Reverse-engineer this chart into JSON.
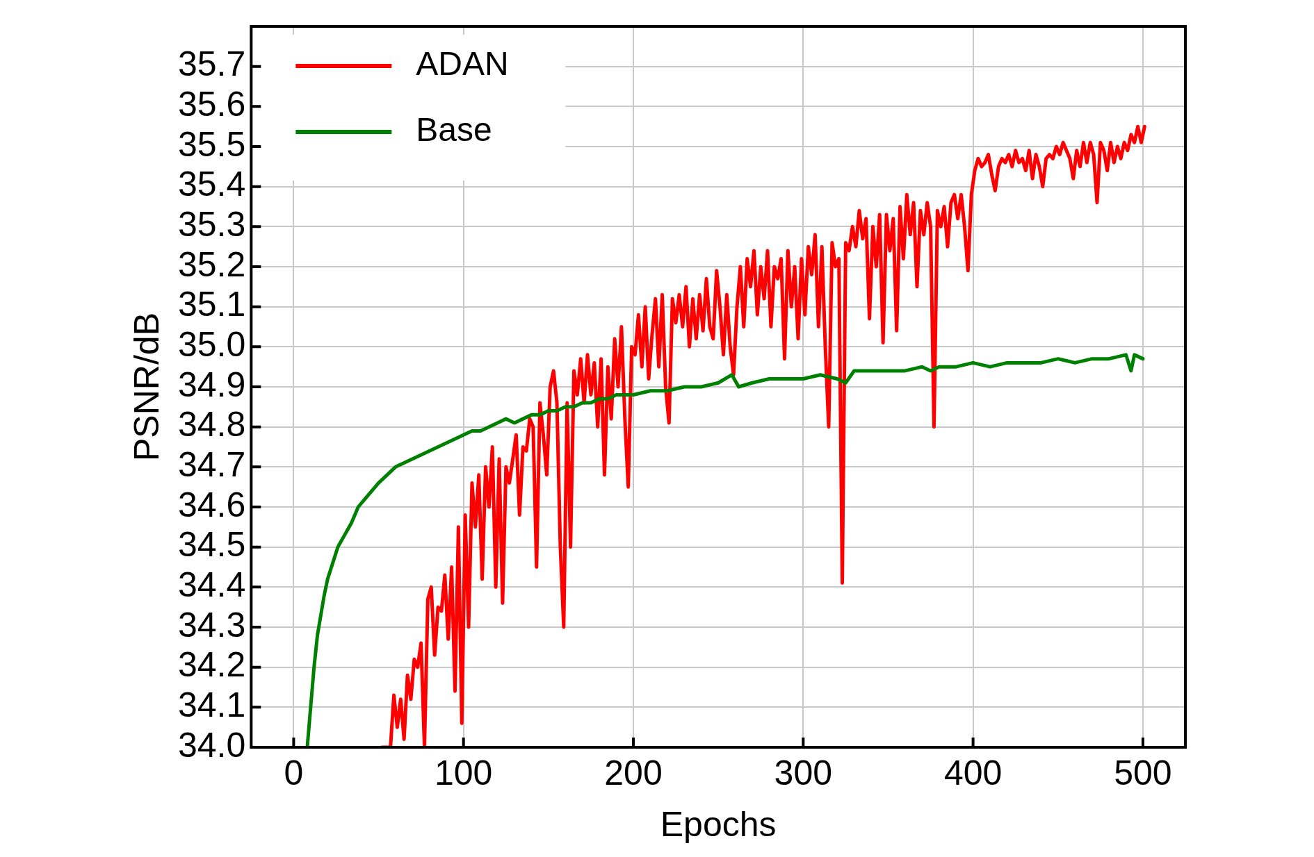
{
  "chart_data": {
    "type": "line",
    "xlabel": "Epochs",
    "ylabel": "PSNR/dB",
    "xlim": [
      -25,
      525
    ],
    "ylim": [
      34.0,
      35.8
    ],
    "xticks": [
      0,
      100,
      200,
      300,
      400,
      500
    ],
    "yticks": [
      {
        "value": 34.0,
        "label": "34.0"
      },
      {
        "value": 34.1,
        "label": "34.1"
      },
      {
        "value": 34.2,
        "label": "34.2"
      },
      {
        "value": 34.3,
        "label": "34.3"
      },
      {
        "value": 34.4,
        "label": "34.4"
      },
      {
        "value": 34.5,
        "label": "34.5"
      },
      {
        "value": 34.6,
        "label": "34.6"
      },
      {
        "value": 34.7,
        "label": "34.7"
      },
      {
        "value": 34.8,
        "label": "34.8"
      },
      {
        "value": 34.9,
        "label": "34.9"
      },
      {
        "value": 35.0,
        "label": "35.0"
      },
      {
        "value": 35.1,
        "label": "35.1"
      },
      {
        "value": 35.2,
        "label": "35.2"
      },
      {
        "value": 35.3,
        "label": "35.3"
      },
      {
        "value": 35.4,
        "label": "35.4"
      },
      {
        "value": 35.5,
        "label": "35.5"
      },
      {
        "value": 35.6,
        "label": "35.6"
      },
      {
        "value": 35.7,
        "label": "35.7"
      }
    ],
    "grid": true,
    "legend": "top left",
    "marker": "none",
    "line_style": "solid",
    "series": [
      {
        "name": "ADAN",
        "color": "#ff0000",
        "x": [
          52,
          57,
          59,
          61,
          63,
          65,
          67,
          69,
          71,
          73,
          75,
          77,
          79,
          81,
          83,
          85,
          87,
          89,
          91,
          93,
          95,
          97,
          99,
          101,
          103,
          105,
          107,
          109,
          111,
          113,
          115,
          117,
          119,
          121,
          123,
          125,
          127,
          129,
          131,
          133,
          135,
          137,
          139,
          141,
          143,
          145,
          147,
          149,
          151,
          153,
          155,
          157,
          159,
          161,
          163,
          165,
          167,
          169,
          171,
          173,
          175,
          177,
          179,
          181,
          183,
          185,
          187,
          189,
          191,
          193,
          195,
          197,
          199,
          201,
          203,
          205,
          207,
          209,
          211,
          213,
          215,
          217,
          219,
          221,
          223,
          225,
          227,
          229,
          231,
          233,
          235,
          237,
          239,
          241,
          243,
          245,
          247,
          249,
          251,
          253,
          255,
          257,
          259,
          261,
          263,
          265,
          267,
          269,
          271,
          273,
          275,
          277,
          279,
          281,
          283,
          285,
          287,
          289,
          291,
          293,
          295,
          297,
          299,
          301,
          303,
          305,
          307,
          309,
          311,
          313,
          315,
          317,
          319,
          321,
          323,
          325,
          327,
          329,
          331,
          333,
          335,
          337,
          339,
          341,
          343,
          345,
          347,
          349,
          351,
          353,
          355,
          357,
          359,
          361,
          363,
          365,
          367,
          369,
          371,
          373,
          375,
          377,
          379,
          381,
          383,
          385,
          387,
          389,
          391,
          393,
          395,
          397,
          399,
          401,
          403,
          405,
          407,
          409,
          411,
          413,
          415,
          417,
          419,
          421,
          423,
          425,
          427,
          429,
          431,
          433,
          435,
          437,
          439,
          441,
          443,
          445,
          447,
          449,
          451,
          453,
          455,
          457,
          459,
          461,
          463,
          465,
          467,
          469,
          471,
          473,
          475,
          477,
          479,
          481,
          483,
          485,
          487,
          489,
          491,
          493,
          495,
          497,
          499,
          501
        ],
        "values": [
          34.0,
          34.0,
          34.13,
          34.05,
          34.12,
          34.02,
          34.18,
          34.12,
          34.22,
          34.2,
          34.26,
          34.0,
          34.37,
          34.4,
          34.23,
          34.35,
          34.34,
          34.43,
          34.27,
          34.45,
          34.14,
          34.55,
          34.06,
          34.58,
          34.3,
          34.66,
          34.55,
          34.68,
          34.42,
          34.7,
          34.6,
          34.75,
          34.4,
          34.72,
          34.36,
          34.7,
          34.66,
          34.72,
          34.78,
          34.58,
          34.75,
          34.74,
          34.82,
          34.8,
          34.45,
          34.86,
          34.78,
          34.68,
          34.9,
          34.94,
          34.86,
          34.5,
          34.3,
          34.86,
          34.5,
          34.94,
          34.88,
          34.97,
          34.86,
          34.98,
          34.88,
          34.96,
          34.8,
          34.97,
          34.68,
          34.95,
          34.82,
          35.02,
          34.9,
          35.05,
          34.82,
          34.65,
          35.0,
          34.98,
          35.08,
          34.95,
          35.1,
          34.92,
          35.03,
          35.12,
          34.95,
          35.13,
          34.9,
          34.81,
          35.12,
          35.06,
          35.13,
          35.05,
          35.15,
          35.0,
          35.12,
          35.02,
          35.13,
          35.04,
          35.17,
          35.05,
          35.02,
          35.19,
          35.1,
          34.98,
          35.13,
          35.0,
          34.93,
          35.1,
          35.2,
          35.05,
          35.22,
          35.15,
          35.24,
          35.08,
          35.2,
          35.12,
          35.24,
          35.05,
          35.2,
          35.17,
          35.22,
          34.97,
          35.24,
          35.1,
          35.2,
          35.02,
          35.22,
          35.08,
          35.25,
          35.18,
          35.28,
          35.05,
          35.25,
          35.0,
          34.8,
          35.26,
          35.2,
          35.22,
          34.41,
          35.26,
          35.24,
          35.3,
          35.25,
          35.34,
          35.27,
          35.32,
          35.07,
          35.3,
          35.2,
          35.33,
          35.01,
          35.33,
          35.24,
          35.32,
          35.04,
          35.35,
          35.22,
          35.38,
          35.28,
          35.36,
          35.15,
          35.34,
          35.28,
          35.36,
          35.3,
          34.8,
          35.34,
          35.3,
          35.35,
          35.25,
          35.36,
          35.38,
          35.32,
          35.38,
          35.3,
          35.19,
          35.38,
          35.44,
          35.47,
          35.45,
          35.46,
          35.48,
          35.43,
          35.39,
          35.45,
          35.47,
          35.46,
          35.48,
          35.45,
          35.49,
          35.46,
          35.47,
          35.44,
          35.49,
          35.42,
          35.48,
          35.45,
          35.4,
          35.47,
          35.48,
          35.47,
          35.5,
          35.48,
          35.51,
          35.49,
          35.47,
          35.42,
          35.49,
          35.45,
          35.51,
          35.46,
          35.51,
          35.48,
          35.36,
          35.51,
          35.49,
          35.44,
          35.51,
          35.46,
          35.5,
          35.47,
          35.51,
          35.49,
          35.53,
          35.51,
          35.55,
          35.51,
          35.55
        ]
      },
      {
        "name": "Base",
        "color": "#008000",
        "x": [
          8,
          10,
          12,
          14,
          16,
          18,
          20,
          23,
          26,
          30,
          34,
          38,
          42,
          46,
          50,
          55,
          60,
          65,
          70,
          75,
          80,
          85,
          90,
          95,
          100,
          105,
          110,
          115,
          120,
          125,
          130,
          135,
          140,
          145,
          150,
          155,
          160,
          165,
          170,
          175,
          180,
          185,
          190,
          195,
          200,
          210,
          220,
          230,
          240,
          250,
          258,
          262,
          270,
          280,
          290,
          300,
          310,
          320,
          325,
          330,
          340,
          350,
          360,
          370,
          375,
          380,
          390,
          400,
          410,
          420,
          430,
          440,
          450,
          460,
          470,
          480,
          490,
          493,
          495,
          500
        ],
        "values": [
          34.0,
          34.1,
          34.2,
          34.28,
          34.33,
          34.38,
          34.42,
          34.46,
          34.5,
          34.53,
          34.56,
          34.6,
          34.62,
          34.64,
          34.66,
          34.68,
          34.7,
          34.71,
          34.72,
          34.73,
          34.74,
          34.75,
          34.76,
          34.77,
          34.78,
          34.79,
          34.79,
          34.8,
          34.81,
          34.82,
          34.81,
          34.82,
          34.83,
          34.83,
          34.84,
          34.84,
          34.85,
          34.85,
          34.86,
          34.86,
          34.87,
          34.87,
          34.88,
          34.88,
          34.88,
          34.89,
          34.89,
          34.9,
          34.9,
          34.91,
          34.93,
          34.9,
          34.91,
          34.92,
          34.92,
          34.92,
          34.93,
          34.92,
          34.91,
          34.94,
          34.94,
          34.94,
          34.94,
          34.95,
          34.94,
          34.95,
          34.95,
          34.96,
          34.95,
          34.96,
          34.96,
          34.96,
          34.97,
          34.96,
          34.97,
          34.97,
          34.98,
          34.94,
          34.98,
          34.97
        ]
      }
    ]
  }
}
